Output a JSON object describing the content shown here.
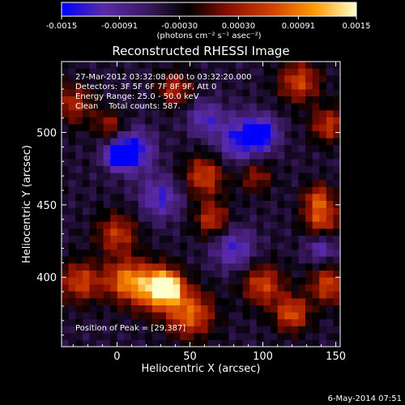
{
  "chart_data": {
    "type": "heatmap",
    "title": "Reconstructed RHESSI Image",
    "xlabel": "Heliocentric X (arcsec)",
    "ylabel": "Heliocentric Y (arcsec)",
    "xlim": [
      -38,
      153
    ],
    "ylim": [
      352,
      549
    ],
    "xticks": [
      0,
      50,
      100,
      150
    ],
    "yticks": [
      400,
      450,
      500
    ],
    "colorbar": {
      "min": -0.0015,
      "max": 0.0015,
      "tick_values": [
        -0.0015,
        -0.00091,
        -0.0003,
        0.0003,
        0.00091,
        0.0015
      ],
      "tick_labels": [
        "-0.0015",
        "-0.00091",
        "-0.00030",
        "0.00030",
        "0.00091",
        "0.0015"
      ],
      "unit_label": "(photons cm⁻² s⁻¹ asec⁻²)",
      "colors": [
        "#0000ff",
        "#5a2aa8",
        "#3c1a64",
        "#000000",
        "#8c1000",
        "#d24000",
        "#ff9a00",
        "#ffffcc"
      ]
    },
    "annotations": [
      "27-Mar-2012 03:32:08.000 to 03:32:20.000",
      "Detectors: 3F 5F 6F 7F 8F 9F, Att 0",
      "Energy Range: 25.0 - 50.0 keV",
      "Clean    Total counts: 587."
    ],
    "peak_label": "Position of Peak = [29,387]",
    "peak": [
      29,
      387
    ],
    "blobs": [
      {
        "x": 25,
        "y": 393,
        "r": 16,
        "v": 0.0014
      },
      {
        "x": 35,
        "y": 393,
        "r": 10,
        "v": 0.0015
      },
      {
        "x": 5,
        "y": 398,
        "r": 14,
        "v": 0.0011
      },
      {
        "x": -25,
        "y": 397,
        "r": 14,
        "v": 0.001
      },
      {
        "x": 50,
        "y": 375,
        "r": 16,
        "v": 0.0012
      },
      {
        "x": 100,
        "y": 395,
        "r": 14,
        "v": 0.001
      },
      {
        "x": 120,
        "y": 375,
        "r": 12,
        "v": 0.0011
      },
      {
        "x": 145,
        "y": 395,
        "r": 13,
        "v": 0.001
      },
      {
        "x": 140,
        "y": 440,
        "r": 12,
        "v": 0.001
      },
      {
        "x": 138,
        "y": 455,
        "r": 10,
        "v": 0.0009
      },
      {
        "x": 125,
        "y": 535,
        "r": 14,
        "v": 0.001
      },
      {
        "x": 145,
        "y": 505,
        "r": 12,
        "v": 0.0009
      },
      {
        "x": 60,
        "y": 470,
        "r": 14,
        "v": 0.001
      },
      {
        "x": 65,
        "y": 440,
        "r": 12,
        "v": 0.0009
      },
      {
        "x": 0,
        "y": 430,
        "r": 14,
        "v": 0.0009
      },
      {
        "x": -30,
        "y": 520,
        "r": 14,
        "v": 0.0008
      },
      {
        "x": -5,
        "y": 505,
        "r": 10,
        "v": 0.0007
      },
      {
        "x": 40,
        "y": 530,
        "r": 12,
        "v": 0.0008
      },
      {
        "x": 95,
        "y": 470,
        "r": 11,
        "v": 0.0007
      },
      {
        "x": 10,
        "y": 487,
        "r": 14,
        "v": -0.0012
      },
      {
        "x": 0,
        "y": 484,
        "r": 7,
        "v": -0.0015
      },
      {
        "x": 85,
        "y": 495,
        "r": 16,
        "v": -0.001
      },
      {
        "x": 100,
        "y": 500,
        "r": 10,
        "v": -0.0011
      },
      {
        "x": 30,
        "y": 455,
        "r": 14,
        "v": -0.0008
      },
      {
        "x": 80,
        "y": 420,
        "r": 14,
        "v": -0.0008
      },
      {
        "x": 140,
        "y": 420,
        "r": 10,
        "v": -0.0007
      },
      {
        "x": 60,
        "y": 510,
        "r": 12,
        "v": -0.0007
      }
    ]
  },
  "footer": {
    "timestamp": "6-May-2014 07:51"
  }
}
